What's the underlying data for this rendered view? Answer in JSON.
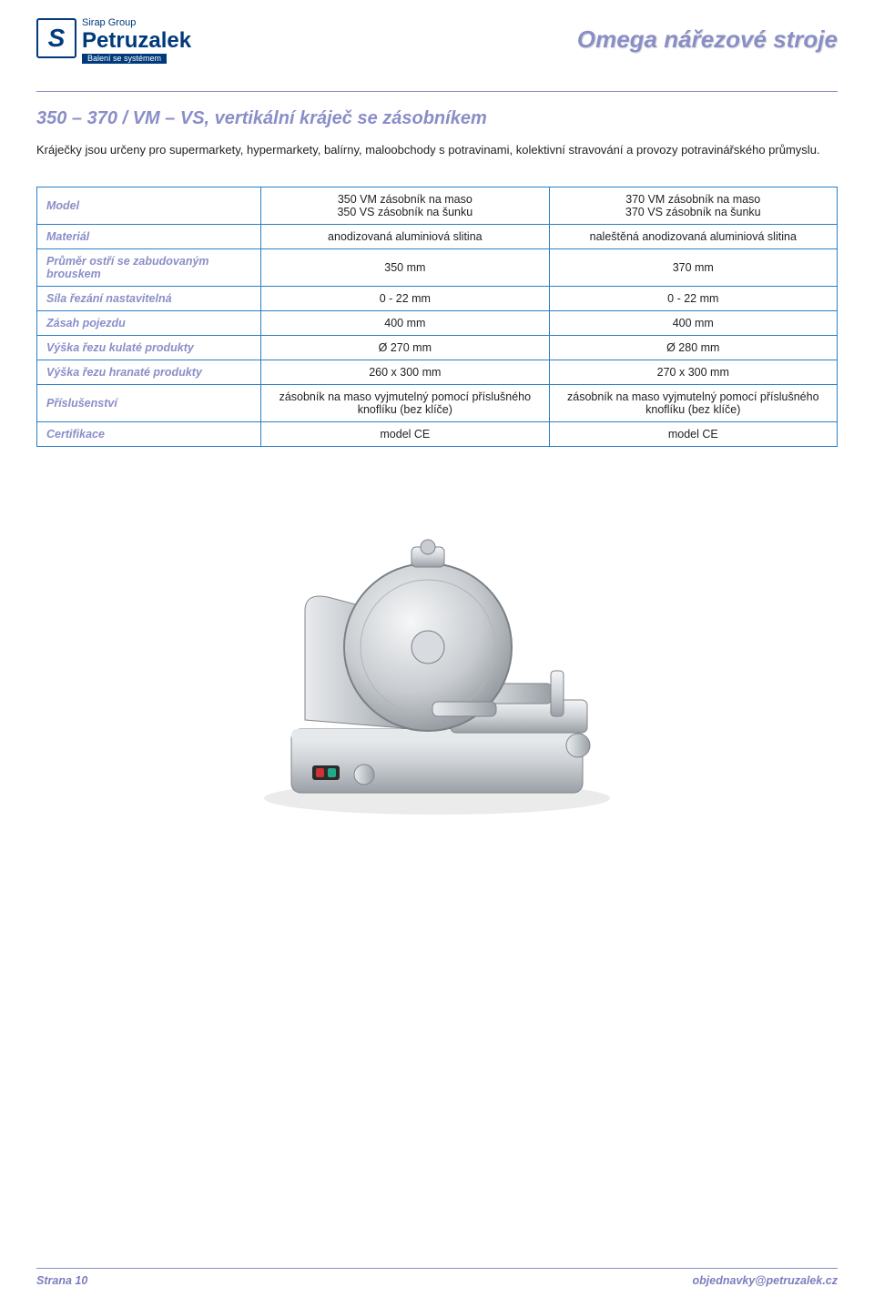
{
  "header": {
    "sirap": "Sirap Group",
    "brand": "Petruzalek",
    "tagline": "Balení se systémem",
    "page_title": "Omega nářezové stroje"
  },
  "section": {
    "heading": "350 – 370 / VM – VS, vertikální kráječ se zásobníkem",
    "intro": "Kráječky jsou určeny pro supermarkety, hypermarkety, balírny, maloobchody s potravinami, kolektivní stravování a provozy potravinářského průmyslu."
  },
  "table": {
    "background_color": "#ffffff",
    "border_color": "#2a7fc6",
    "label_color": "#8a8ec7",
    "text_color": "#222222",
    "rows": [
      {
        "label": "Model",
        "c1": "350 VM zásobník na maso\n350 VS zásobník na šunku",
        "c2": "370 VM zásobník na maso\n370 VS zásobník na šunku"
      },
      {
        "label": "Materiál",
        "c1": "anodizovaná aluminiová slitina",
        "c2": "naleštěná anodizovaná aluminiová slitina"
      },
      {
        "label": "Průměr ostří se zabudovaným brouskem",
        "c1": "350 mm",
        "c2": "370 mm"
      },
      {
        "label": "Síla řezání nastavitelná",
        "c1": "0 - 22 mm",
        "c2": "0 - 22 mm"
      },
      {
        "label": "Zásah pojezdu",
        "c1": "400 mm",
        "c2": "400 mm"
      },
      {
        "label": "Výška řezu kulaté produkty",
        "c1": "Ø 270 mm",
        "c2": "Ø 280 mm"
      },
      {
        "label": "Výška řezu hranaté produkty",
        "c1": "260 x 300 mm",
        "c2": "270 x 300 mm"
      },
      {
        "label": "Příslušenství",
        "c1": "zásobník na maso vyjmutelný pomocí příslušného knoflíku (bez klíče)",
        "c2": "zásobník na maso vyjmutelný pomocí příslušného knoflíku (bez klíče)"
      },
      {
        "label": "Certifikace",
        "c1": "model CE",
        "c2": "model CE"
      }
    ]
  },
  "footer": {
    "page": "Strana 10",
    "email": "objednavky@petruzalek.cz"
  },
  "colors": {
    "brand_blue": "#003a7a",
    "accent_lilac": "#8a8ec7",
    "rule": "#8a8ec7"
  }
}
